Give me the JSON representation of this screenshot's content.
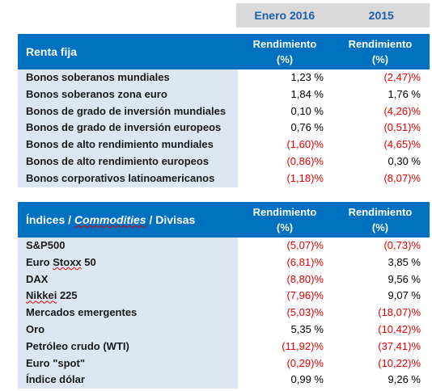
{
  "columns": {
    "period1": "Enero 2016",
    "period2": "2015"
  },
  "colors": {
    "header_blue": "#0070c0",
    "label_bg": "#dce6f2",
    "column_header_bg": "#d9d9d9",
    "column_header_text": "#1f5fa8",
    "negative": "#e00000"
  },
  "table1": {
    "title": "Renta fija",
    "col1_label": "Rendimiento",
    "col1_unit": "(%)",
    "col2_label": "Rendimiento",
    "col2_unit": "(%)",
    "rows": [
      {
        "label": "Bonos soberanos mundiales",
        "v1": "1,23 %",
        "v2": "(2,47)%"
      },
      {
        "label": "Bonos soberanos zona euro",
        "v1": "1,84 %",
        "v2": "1,76 %"
      },
      {
        "label": "Bonos de grado de inversión mundiales",
        "v1": "0,10 %",
        "v2": "(4,26)%"
      },
      {
        "label": "Bonos de grado de inversión europeos",
        "v1": "0,76 %",
        "v2": "(0,51)%"
      },
      {
        "label": "Bonos de alto rendimiento mundiales",
        "v1": "(1,60)%",
        "v2": "(4,65)%"
      },
      {
        "label": "Bonos de alto rendimiento europeos",
        "v1": "(0,86)%",
        "v2": "0,30 %"
      },
      {
        "label": "Bonos corporativos latinoamericanos",
        "v1": "(1,18)%",
        "v2": "(8,07)%"
      }
    ]
  },
  "table2": {
    "title_a": "Índices / ",
    "title_b": "Commodities",
    "title_c": " / Divisas",
    "col1_label": "Rendimiento",
    "col1_unit": "(%)",
    "col2_label": "Rendimiento",
    "col2_unit": "(%)",
    "rows": [
      {
        "label": "S&P500",
        "v1": "(5,07)%",
        "v2": "(0,73)%"
      },
      {
        "label": "Euro Stoxx 50",
        "v1": "(6,81)%",
        "v2": "3,85 %"
      },
      {
        "label": "DAX",
        "v1": "(8,80)%",
        "v2": "9,56 %"
      },
      {
        "label": "Nikkei 225",
        "v1": "(7,96)%",
        "v2": "9,07 %"
      },
      {
        "label": "Mercados emergentes",
        "v1": "(5,03)%",
        "v2": "(18,07)%"
      },
      {
        "label": "Oro",
        "v1": "5,35 %",
        "v2": "(10,42)%"
      },
      {
        "label": "Petróleo crudo (WTI)",
        "v1": "(11,92)%",
        "v2": "(37,41)%"
      },
      {
        "label": "Euro \"spot\"",
        "v1": "(0,29)%",
        "v2": "(10,22)%"
      },
      {
        "label": "Índice dólar",
        "v1": "0,99 %",
        "v2": "9,26 %"
      }
    ]
  }
}
